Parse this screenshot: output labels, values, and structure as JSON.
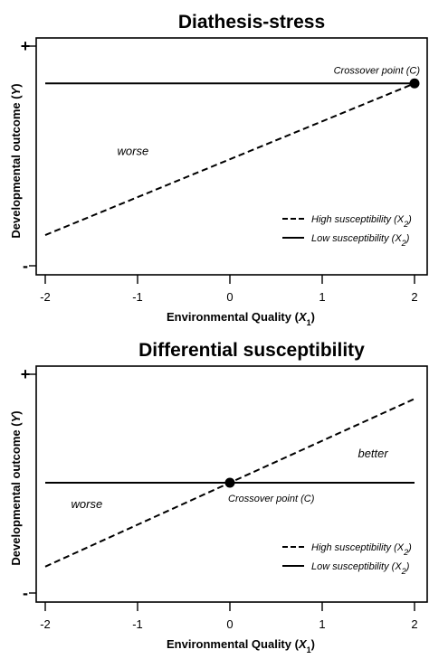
{
  "chart_data": [
    {
      "type": "line",
      "title": "Diathesis-stress",
      "xlabel": "Environmental Quality",
      "xlabel_var": "X",
      "xlabel_sub": "1",
      "ylabel": "Developmental outcome",
      "ylabel_var": "Y",
      "y_top_label": "+",
      "y_bottom_label": "-",
      "xlim": [
        -2,
        2
      ],
      "ylim": [
        0,
        1
      ],
      "x_ticks": [
        "-2",
        "-1",
        "0",
        "1",
        "2"
      ],
      "series": [
        {
          "name": "High susceptibility",
          "name_var": "X",
          "name_sub": "2",
          "style": "dashed",
          "x": [
            -2,
            2
          ],
          "y": [
            0.12,
            0.84
          ]
        },
        {
          "name": "Low susceptibility",
          "name_var": "X",
          "name_sub": "2",
          "style": "solid",
          "x": [
            -2,
            2
          ],
          "y": [
            0.84,
            0.84
          ]
        }
      ],
      "crossover": {
        "label": "Crossover point",
        "label_var": "C",
        "x": 2,
        "y": 0.84
      },
      "regions": [
        {
          "label": "worse",
          "x": -1.05,
          "y": 0.5
        }
      ],
      "legend": "bottom-right"
    },
    {
      "type": "line",
      "title": "Differential susceptibility",
      "xlabel": "Environmental Quality",
      "xlabel_var": "X",
      "xlabel_sub": "1",
      "ylabel": "Developmental outcome",
      "ylabel_var": "Y",
      "y_top_label": "+",
      "y_bottom_label": "-",
      "xlim": [
        -2,
        2
      ],
      "ylim": [
        0,
        1
      ],
      "x_ticks": [
        "-2",
        "-1",
        "0",
        "1",
        "2"
      ],
      "series": [
        {
          "name": "High susceptibility",
          "name_var": "X",
          "name_sub": "2",
          "style": "dashed",
          "x": [
            -2,
            2
          ],
          "y": [
            0.1,
            0.9
          ]
        },
        {
          "name": "Low susceptibility",
          "name_var": "X",
          "name_sub": "2",
          "style": "solid",
          "x": [
            -2,
            2
          ],
          "y": [
            0.5,
            0.5
          ]
        }
      ],
      "crossover": {
        "label": "Crossover point",
        "label_var": "C",
        "x": 0,
        "y": 0.5
      },
      "regions": [
        {
          "label": "worse",
          "x": -1.55,
          "y": 0.38
        },
        {
          "label": "better",
          "x": 1.55,
          "y": 0.62
        }
      ],
      "legend": "bottom-right"
    }
  ]
}
